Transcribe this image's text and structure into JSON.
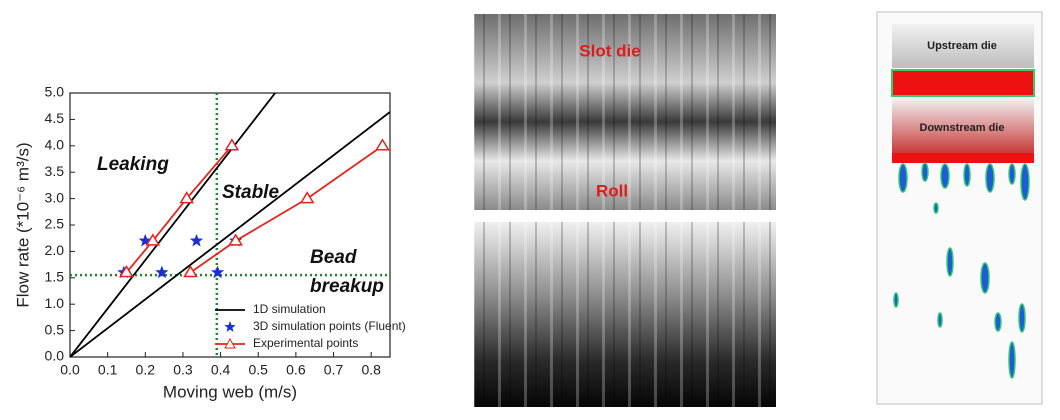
{
  "chart_data": {
    "type": "line",
    "xlabel": "Moving web (m/s)",
    "ylabel": "Flow rate (*10⁻⁶ m³/s)",
    "xlim": [
      0,
      0.85
    ],
    "ylim": [
      0,
      5.0
    ],
    "xticks": [
      {
        "value": 0,
        "label": "0.0"
      },
      0.1,
      0.2,
      0.3,
      0.4,
      0.5,
      0.6,
      0.7,
      0.8
    ],
    "yticks": [
      {
        "value": 0,
        "label": "0.0"
      },
      0.5,
      {
        "value": 1,
        "label": "1.0"
      },
      1.5,
      {
        "value": 2,
        "label": "2.0"
      },
      2.5,
      {
        "value": 3,
        "label": "3.0"
      },
      3.5,
      {
        "value": 4,
        "label": "4.0"
      },
      4.5,
      {
        "value": 5,
        "label": "5.0"
      }
    ],
    "series": [
      {
        "name": "1D simulation",
        "type": "line",
        "marker": "none",
        "color": "#000000",
        "x": [
          0.545,
          0,
          0.85
        ],
        "values": [
          5.0,
          0,
          4.64
        ]
      },
      {
        "name": "3D simulation points (Fluent)",
        "type": "scatter",
        "marker": "star",
        "color": "#1a2fd6",
        "x": [
          0.143,
          0.2,
          0.244,
          0.336,
          0.392,
          0.44
        ],
        "values": [
          1.6,
          2.2,
          1.6,
          2.2,
          1.6,
          2.2
        ]
      },
      {
        "name": "Experimental points",
        "type": "line",
        "marker": "triangle",
        "color": "#e8221a",
        "x": [
          0.15,
          0.22,
          0.31,
          0.43,
          null,
          0.32,
          0.44,
          0.63,
          0.83
        ],
        "values": [
          1.6,
          2.2,
          3.0,
          4.0,
          null,
          1.6,
          2.2,
          3.0,
          4.0
        ]
      }
    ],
    "hlines": [
      1.55
    ],
    "vlines": [
      0.39
    ],
    "reference_color": "#1e8a2e",
    "annotations": [
      "Leaking",
      "Stable",
      "Bead",
      "breakup"
    ],
    "legend": "lower right"
  },
  "panels": {
    "photo": {
      "top_label": "Slot die",
      "bottom_label": "Roll"
    },
    "simulation": {
      "upstream": "Upstream die",
      "downstream": "Downstream die"
    }
  }
}
